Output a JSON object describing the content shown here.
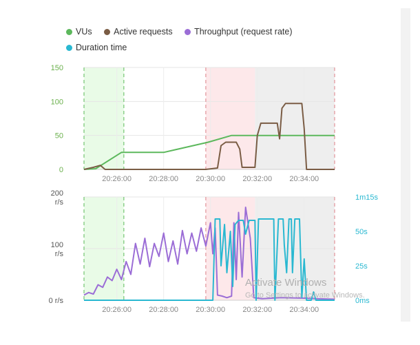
{
  "legend": [
    {
      "name": "VUs",
      "color": "#5cb85c"
    },
    {
      "name": "Active requests",
      "color": "#7a5c44"
    },
    {
      "name": "Throughput (request rate)",
      "color": "#9b6dd6"
    },
    {
      "name": "Duration time",
      "color": "#29b8d1"
    }
  ],
  "watermark": {
    "line1": "Activate Windows",
    "line2": "Go to Settings to activate Windows."
  },
  "colors": {
    "vus": "#5cb85c",
    "active": "#7a5c44",
    "throughput": "#9b6dd6",
    "duration": "#29b8d1",
    "green_band": "#e9fbe7",
    "pink_band": "#fde8ea",
    "gray_band": "#eeeeee"
  },
  "chart_data": [
    {
      "type": "line",
      "title": "",
      "x_tick_labels": [
        "20:26:00",
        "20:28:00",
        "20:30:00",
        "20:32:00",
        "20:34:00"
      ],
      "x_ticks_min": [
        26,
        28,
        30,
        32,
        34
      ],
      "xlim": [
        24.6,
        35.3
      ],
      "y_tick_labels": [
        "150",
        "100",
        "50",
        "0"
      ],
      "y_ticks": [
        150,
        100,
        50,
        0
      ],
      "ylim": [
        0,
        150
      ],
      "bands": [
        {
          "from": 24.6,
          "to": 26.3,
          "kind": "green"
        },
        {
          "from": 29.8,
          "to": 31.9,
          "kind": "pink"
        },
        {
          "from": 31.9,
          "to": 35.3,
          "kind": "gray"
        }
      ],
      "markers": [
        {
          "x": 24.6,
          "color": "green"
        },
        {
          "x": 26.3,
          "color": "green"
        },
        {
          "x": 29.8,
          "color": "pink"
        },
        {
          "x": 35.3,
          "color": "pink"
        }
      ],
      "series": [
        {
          "name": "VUs",
          "color": "#5cb85c",
          "points": [
            [
              24.6,
              0
            ],
            [
              25.1,
              1
            ],
            [
              26.2,
              25
            ],
            [
              28.0,
              25
            ],
            [
              29.9,
              40
            ],
            [
              30.9,
              50
            ],
            [
              35.3,
              50
            ]
          ]
        },
        {
          "name": "Active requests",
          "color": "#7a5c44",
          "points": [
            [
              24.6,
              0
            ],
            [
              25.0,
              3
            ],
            [
              25.3,
              6
            ],
            [
              25.5,
              0
            ],
            [
              29.8,
              0
            ],
            [
              30.3,
              2
            ],
            [
              30.45,
              35
            ],
            [
              30.65,
              40
            ],
            [
              31.1,
              40
            ],
            [
              31.25,
              30
            ],
            [
              31.35,
              3
            ],
            [
              31.9,
              3
            ],
            [
              32.0,
              50
            ],
            [
              32.15,
              68
            ],
            [
              32.85,
              68
            ],
            [
              32.95,
              45
            ],
            [
              33.05,
              90
            ],
            [
              33.2,
              97
            ],
            [
              33.9,
              97
            ],
            [
              34.0,
              60
            ],
            [
              34.1,
              0
            ],
            [
              35.3,
              0
            ]
          ]
        }
      ]
    },
    {
      "type": "line",
      "title": "",
      "x_tick_labels": [
        "20:26:00",
        "20:28:00",
        "20:30:00",
        "20:32:00",
        "20:34:00"
      ],
      "x_ticks_min": [
        26,
        28,
        30,
        32,
        34
      ],
      "xlim": [
        24.6,
        35.3
      ],
      "y_left_tick_labels": [
        {
          "text": "200",
          "unit": "r/s",
          "v": 200
        },
        {
          "text": "100",
          "unit": "r/s",
          "v": 100
        },
        {
          "text": "0 r/s",
          "unit": "",
          "v": 0
        }
      ],
      "ylim_left": [
        0,
        200
      ],
      "y_right_tick_labels": [
        {
          "text": "1m15s",
          "v": 75
        },
        {
          "text": "50s",
          "v": 50
        },
        {
          "text": "25s",
          "v": 25
        },
        {
          "text": "0ms",
          "v": 0
        }
      ],
      "ylim_right": [
        0,
        75
      ],
      "bands": [
        {
          "from": 24.6,
          "to": 26.3,
          "kind": "green"
        },
        {
          "from": 29.8,
          "to": 31.9,
          "kind": "pink"
        },
        {
          "from": 31.9,
          "to": 35.3,
          "kind": "gray"
        }
      ],
      "markers": [
        {
          "x": 24.6,
          "color": "green"
        },
        {
          "x": 26.3,
          "color": "green"
        },
        {
          "x": 29.8,
          "color": "pink"
        },
        {
          "x": 35.3,
          "color": "pink"
        }
      ],
      "series": [
        {
          "name": "Throughput (request rate)",
          "axis": "left",
          "color": "#9b6dd6",
          "points": [
            [
              24.6,
              10
            ],
            [
              24.8,
              15
            ],
            [
              25.0,
              12
            ],
            [
              25.2,
              30
            ],
            [
              25.4,
              25
            ],
            [
              25.6,
              45
            ],
            [
              25.8,
              38
            ],
            [
              26.0,
              60
            ],
            [
              26.2,
              40
            ],
            [
              26.4,
              75
            ],
            [
              26.6,
              50
            ],
            [
              26.8,
              110
            ],
            [
              27.0,
              70
            ],
            [
              27.2,
              120
            ],
            [
              27.4,
              65
            ],
            [
              27.6,
              110
            ],
            [
              27.8,
              85
            ],
            [
              28.0,
              130
            ],
            [
              28.2,
              75
            ],
            [
              28.4,
              115
            ],
            [
              28.6,
              70
            ],
            [
              28.8,
              135
            ],
            [
              29.0,
              90
            ],
            [
              29.2,
              130
            ],
            [
              29.4,
              95
            ],
            [
              29.6,
              140
            ],
            [
              29.8,
              105
            ],
            [
              30.0,
              150
            ],
            [
              30.1,
              90
            ],
            [
              30.2,
              140
            ],
            [
              30.3,
              10
            ],
            [
              30.5,
              8
            ],
            [
              30.7,
              5
            ],
            [
              30.9,
              8
            ],
            [
              31.0,
              150
            ],
            [
              31.1,
              40
            ],
            [
              31.2,
              170
            ],
            [
              31.35,
              45
            ],
            [
              31.5,
              180
            ],
            [
              31.7,
              120
            ],
            [
              31.85,
              5
            ],
            [
              32.2,
              3
            ],
            [
              33.0,
              5
            ],
            [
              34.0,
              4
            ],
            [
              34.5,
              3
            ],
            [
              35.3,
              2
            ]
          ]
        },
        {
          "name": "Duration time",
          "axis": "right",
          "color": "#29b8d1",
          "points": [
            [
              24.6,
              0
            ],
            [
              30.1,
              0
            ],
            [
              30.2,
              59
            ],
            [
              30.4,
              59
            ],
            [
              30.45,
              25
            ],
            [
              30.6,
              55
            ],
            [
              30.7,
              20
            ],
            [
              30.85,
              50
            ],
            [
              30.95,
              10
            ],
            [
              31.05,
              55
            ],
            [
              31.2,
              58
            ],
            [
              31.4,
              58
            ],
            [
              31.5,
              48
            ],
            [
              31.65,
              58
            ],
            [
              31.9,
              58
            ],
            [
              31.95,
              0
            ],
            [
              32.05,
              59
            ],
            [
              32.7,
              59
            ],
            [
              32.75,
              0
            ],
            [
              32.9,
              59
            ],
            [
              33.1,
              59
            ],
            [
              33.15,
              40
            ],
            [
              33.25,
              20
            ],
            [
              33.35,
              59
            ],
            [
              33.45,
              59
            ],
            [
              33.5,
              20
            ],
            [
              33.6,
              59
            ],
            [
              33.8,
              59
            ],
            [
              33.9,
              2
            ],
            [
              34.0,
              30
            ],
            [
              34.1,
              0
            ],
            [
              34.3,
              0
            ],
            [
              34.4,
              6
            ],
            [
              34.5,
              0
            ],
            [
              35.3,
              0
            ]
          ]
        }
      ]
    }
  ]
}
